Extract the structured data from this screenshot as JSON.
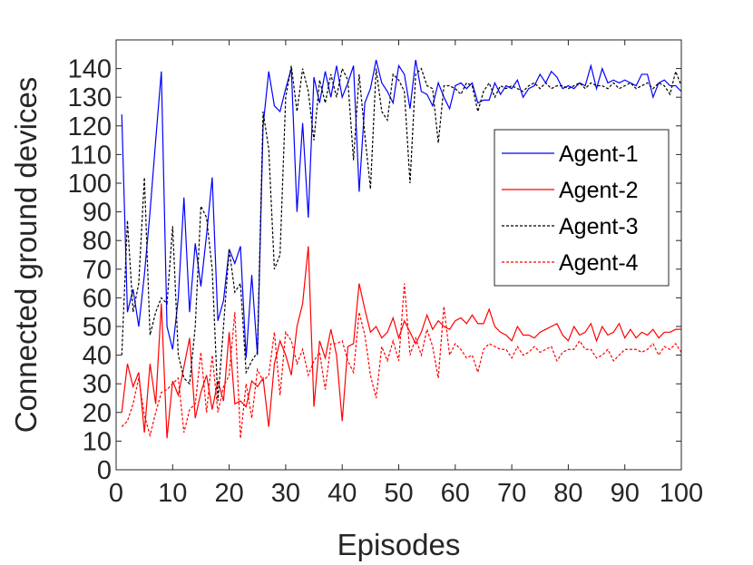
{
  "chart_data": {
    "type": "line",
    "xlabel": "Episodes",
    "ylabel": "Connected ground devices",
    "xlim": [
      0,
      100
    ],
    "ylim": [
      0,
      150
    ],
    "xticks": [
      0,
      10,
      20,
      30,
      40,
      50,
      60,
      70,
      80,
      90,
      100
    ],
    "yticks": [
      0,
      10,
      20,
      30,
      40,
      50,
      60,
      70,
      80,
      90,
      100,
      110,
      120,
      130,
      140
    ],
    "grid": false,
    "legend_position": "right",
    "x": [
      1,
      2,
      3,
      4,
      5,
      6,
      7,
      8,
      9,
      10,
      11,
      12,
      13,
      14,
      15,
      16,
      17,
      18,
      19,
      20,
      21,
      22,
      23,
      24,
      25,
      26,
      27,
      28,
      29,
      30,
      31,
      32,
      33,
      34,
      35,
      36,
      37,
      38,
      39,
      40,
      41,
      42,
      43,
      44,
      45,
      46,
      47,
      48,
      49,
      50,
      51,
      52,
      53,
      54,
      55,
      56,
      57,
      58,
      59,
      60,
      61,
      62,
      63,
      64,
      65,
      66,
      67,
      68,
      69,
      70,
      71,
      72,
      73,
      74,
      75,
      76,
      77,
      78,
      79,
      80,
      81,
      82,
      83,
      84,
      85,
      86,
      87,
      88,
      89,
      90,
      91,
      92,
      93,
      94,
      95,
      96,
      97,
      98,
      99,
      100
    ],
    "series": [
      {
        "name": "Agent-1",
        "color": "#0000ff",
        "dash": "solid",
        "values": [
          124,
          55,
          63,
          50,
          68,
          90,
          115,
          139,
          50,
          42,
          60,
          95,
          55,
          79,
          64,
          82,
          102,
          52,
          59,
          77,
          72,
          78,
          39,
          68,
          40,
          120,
          139,
          127,
          125,
          133,
          140,
          90,
          121,
          88,
          137,
          128,
          139,
          130,
          141,
          130,
          135,
          141,
          97,
          128,
          133,
          143,
          135,
          132,
          128,
          141,
          138,
          126,
          143,
          132,
          131,
          127,
          135,
          130,
          126,
          134,
          135,
          133,
          135,
          128,
          129,
          129,
          135,
          131,
          134,
          133,
          136,
          130,
          133,
          134,
          138,
          135,
          139,
          137,
          133,
          134,
          133,
          135,
          134,
          141,
          133,
          140,
          135,
          136,
          135,
          136,
          135,
          134,
          138,
          138,
          130,
          135,
          136,
          134,
          134,
          132
        ]
      },
      {
        "name": "Agent-2",
        "color": "#ff0000",
        "dash": "solid",
        "values": [
          20,
          37,
          29,
          34,
          13,
          37,
          23,
          58,
          11,
          31,
          26,
          36,
          46,
          18,
          27,
          33,
          21,
          31,
          24,
          48,
          23,
          24,
          22,
          31,
          29,
          32,
          15,
          37,
          45,
          40,
          33,
          50,
          58,
          78,
          22,
          45,
          39,
          49,
          40,
          17,
          43,
          44,
          65,
          56,
          48,
          50,
          46,
          48,
          53,
          46,
          52,
          48,
          44,
          48,
          54,
          49,
          52,
          50,
          49,
          52,
          53,
          51,
          54,
          51,
          51,
          56,
          50,
          48,
          47,
          45,
          50,
          47,
          47,
          46,
          48,
          49,
          50,
          51,
          47,
          45,
          50,
          47,
          48,
          51,
          45,
          50,
          47,
          48,
          51,
          46,
          49,
          46,
          48,
          47,
          49,
          46,
          48,
          48,
          49,
          49
        ]
      },
      {
        "name": "Agent-3",
        "color": "#000000",
        "dash": "dashed",
        "values": [
          40,
          87,
          55,
          65,
          102,
          47,
          55,
          60,
          58,
          85,
          40,
          32,
          30,
          50,
          92,
          88,
          70,
          24,
          50,
          77,
          62,
          65,
          34,
          38,
          41,
          125,
          112,
          70,
          75,
          130,
          141,
          125,
          140,
          132,
          115,
          136,
          128,
          138,
          130,
          140,
          136,
          108,
          138,
          117,
          98,
          140,
          125,
          122,
          138,
          136,
          132,
          100,
          138,
          140,
          134,
          133,
          114,
          134,
          134,
          133,
          131,
          135,
          134,
          125,
          132,
          135,
          130,
          134,
          133,
          134,
          133,
          132,
          134,
          135,
          133,
          135,
          133,
          134,
          134,
          133,
          134,
          135,
          133,
          135,
          134,
          134,
          133,
          135,
          133,
          134,
          135,
          133,
          134,
          135,
          133,
          135,
          134,
          131,
          139,
          134
        ]
      },
      {
        "name": "Agent-4",
        "color": "#ff0000",
        "dash": "dashed",
        "values": [
          15,
          17,
          23,
          32,
          19,
          12,
          20,
          27,
          28,
          30,
          32,
          13,
          21,
          23,
          41,
          20,
          40,
          20,
          29,
          33,
          55,
          11,
          30,
          18,
          35,
          31,
          33,
          48,
          26,
          48,
          45,
          37,
          42,
          33,
          38,
          41,
          28,
          44,
          44,
          45,
          38,
          34,
          55,
          47,
          33,
          25,
          43,
          38,
          45,
          38,
          65,
          40,
          46,
          40,
          49,
          43,
          32,
          57,
          40,
          44,
          42,
          39,
          40,
          34,
          42,
          44,
          43,
          42,
          42,
          39,
          43,
          40,
          41,
          43,
          41,
          42,
          43,
          38,
          41,
          42,
          42,
          45,
          42,
          42,
          39,
          40,
          42,
          38,
          40,
          42,
          42,
          42,
          41,
          42,
          44,
          40,
          43,
          42,
          44,
          41
        ]
      }
    ]
  }
}
